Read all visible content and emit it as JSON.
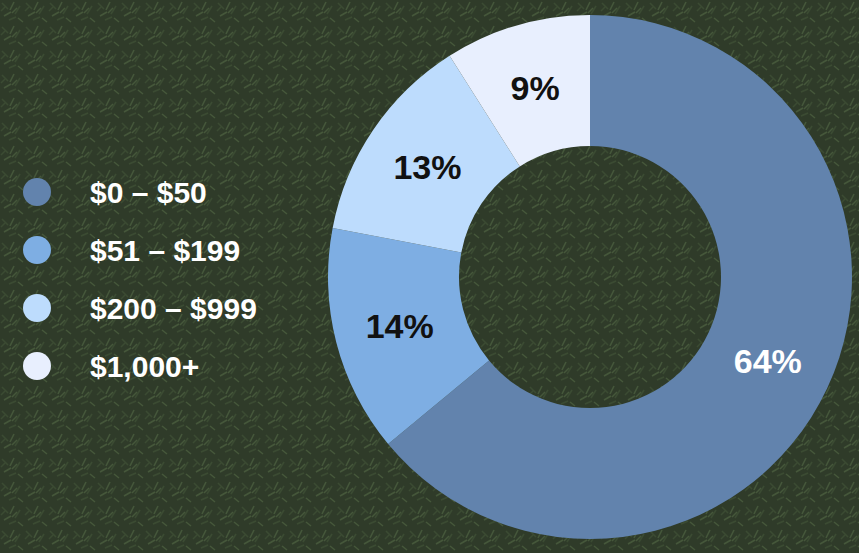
{
  "chart_data": {
    "type": "pie",
    "categories": [
      "$0 – $50",
      "$51 – $199",
      "$200 – $999",
      "$1,000+"
    ],
    "values": [
      64,
      14,
      13,
      9
    ],
    "value_labels": [
      "64%",
      "14%",
      "13%",
      "9%"
    ],
    "colors": [
      "#6283ad",
      "#7eaee3",
      "#bddcfd",
      "#e8effe"
    ],
    "data_labels": true,
    "legend": "left"
  }
}
